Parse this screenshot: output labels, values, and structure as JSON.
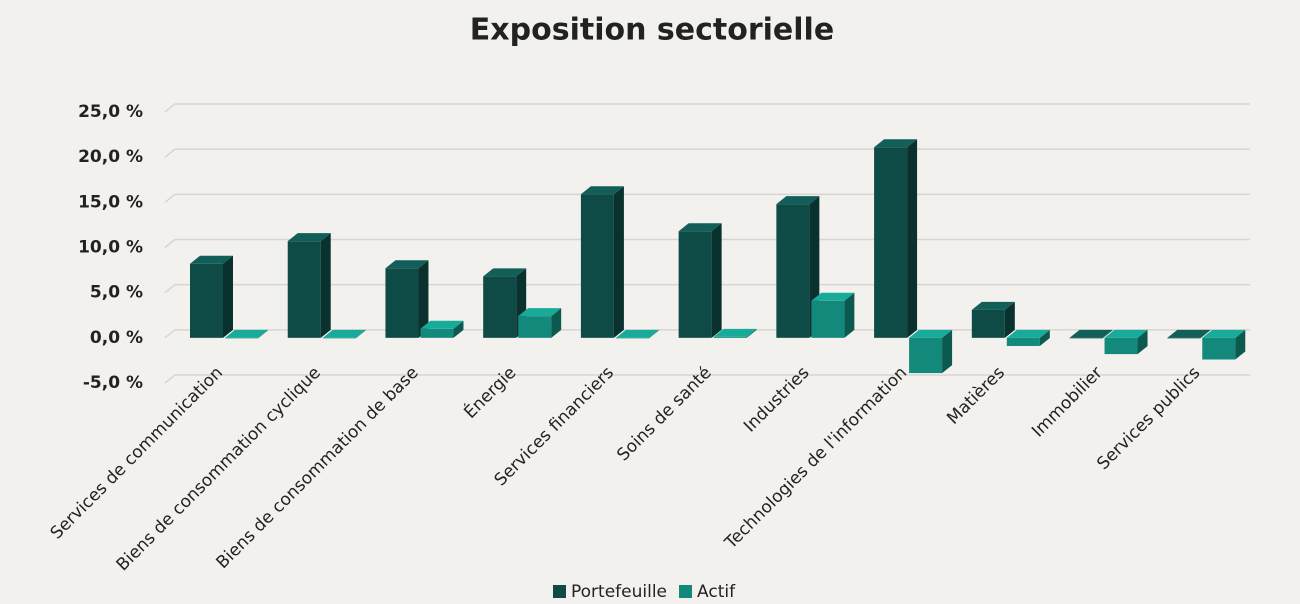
{
  "chart_data": {
    "type": "bar3d",
    "title": "Exposition sectorielle",
    "categories": [
      "Services de communication",
      "Biens de consommation cyclique",
      "Biens de consommation de base",
      "Énergie",
      "Services financiers",
      "Soins de santé",
      "Industries",
      "Technologies de l'information",
      "Matières",
      "Immobilier",
      "Services publics"
    ],
    "series": [
      {
        "name": "Portefeuille",
        "color": "#0e4b46",
        "values": [
          8.2,
          10.7,
          7.7,
          6.8,
          15.9,
          11.8,
          14.8,
          21.1,
          3.1,
          0,
          0
        ]
      },
      {
        "name": "Actif",
        "color": "#13897b",
        "values": [
          0,
          0,
          1.0,
          2.4,
          0,
          0.1,
          4.1,
          -3.9,
          -0.9,
          -1.8,
          -2.4
        ]
      }
    ],
    "ylim": [
      -5,
      25
    ],
    "yticks": [
      {
        "value": -5,
        "label": "-5,0 %"
      },
      {
        "value": 0,
        "label": "0,0 %"
      },
      {
        "value": 5,
        "label": "5,0 %"
      },
      {
        "value": 10,
        "label": "10,0 %"
      },
      {
        "value": 15,
        "label": "15,0 %"
      },
      {
        "value": 20,
        "label": "20,0 %"
      },
      {
        "value": 25,
        "label": "25,0 %"
      }
    ],
    "grid": true
  }
}
